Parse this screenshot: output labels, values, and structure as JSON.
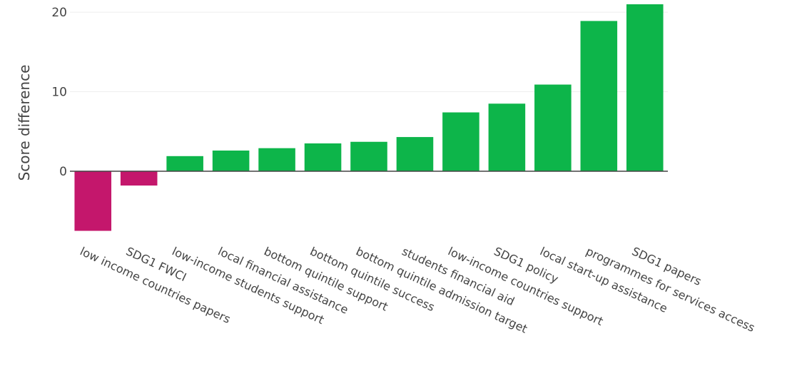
{
  "chart_data": {
    "type": "bar",
    "categories": [
      "low income countries papers",
      "SDG1 FWCI",
      "low-income students support",
      "local financial assistance",
      "bottom quintile support",
      "bottom quintile success",
      "bottom quintile admission target",
      "students financial aid",
      "low-income countries support",
      "SDG1 policy",
      "local start-up assistance",
      "programmes for services access",
      "SDG1 papers"
    ],
    "values": [
      -7.5,
      -1.8,
      1.9,
      2.6,
      2.9,
      3.5,
      3.7,
      4.3,
      7.4,
      8.5,
      10.9,
      18.9,
      21.0
    ],
    "title": "",
    "xlabel": "",
    "ylabel": "Score difference",
    "ylim": [
      -7.9,
      21.0
    ],
    "yticks": [
      0,
      10,
      20
    ],
    "grid": true,
    "colors": {
      "positive": "#0db54a",
      "negative": "#c4176c",
      "grid": "#eeeeee",
      "zero_line": "#444444"
    }
  }
}
